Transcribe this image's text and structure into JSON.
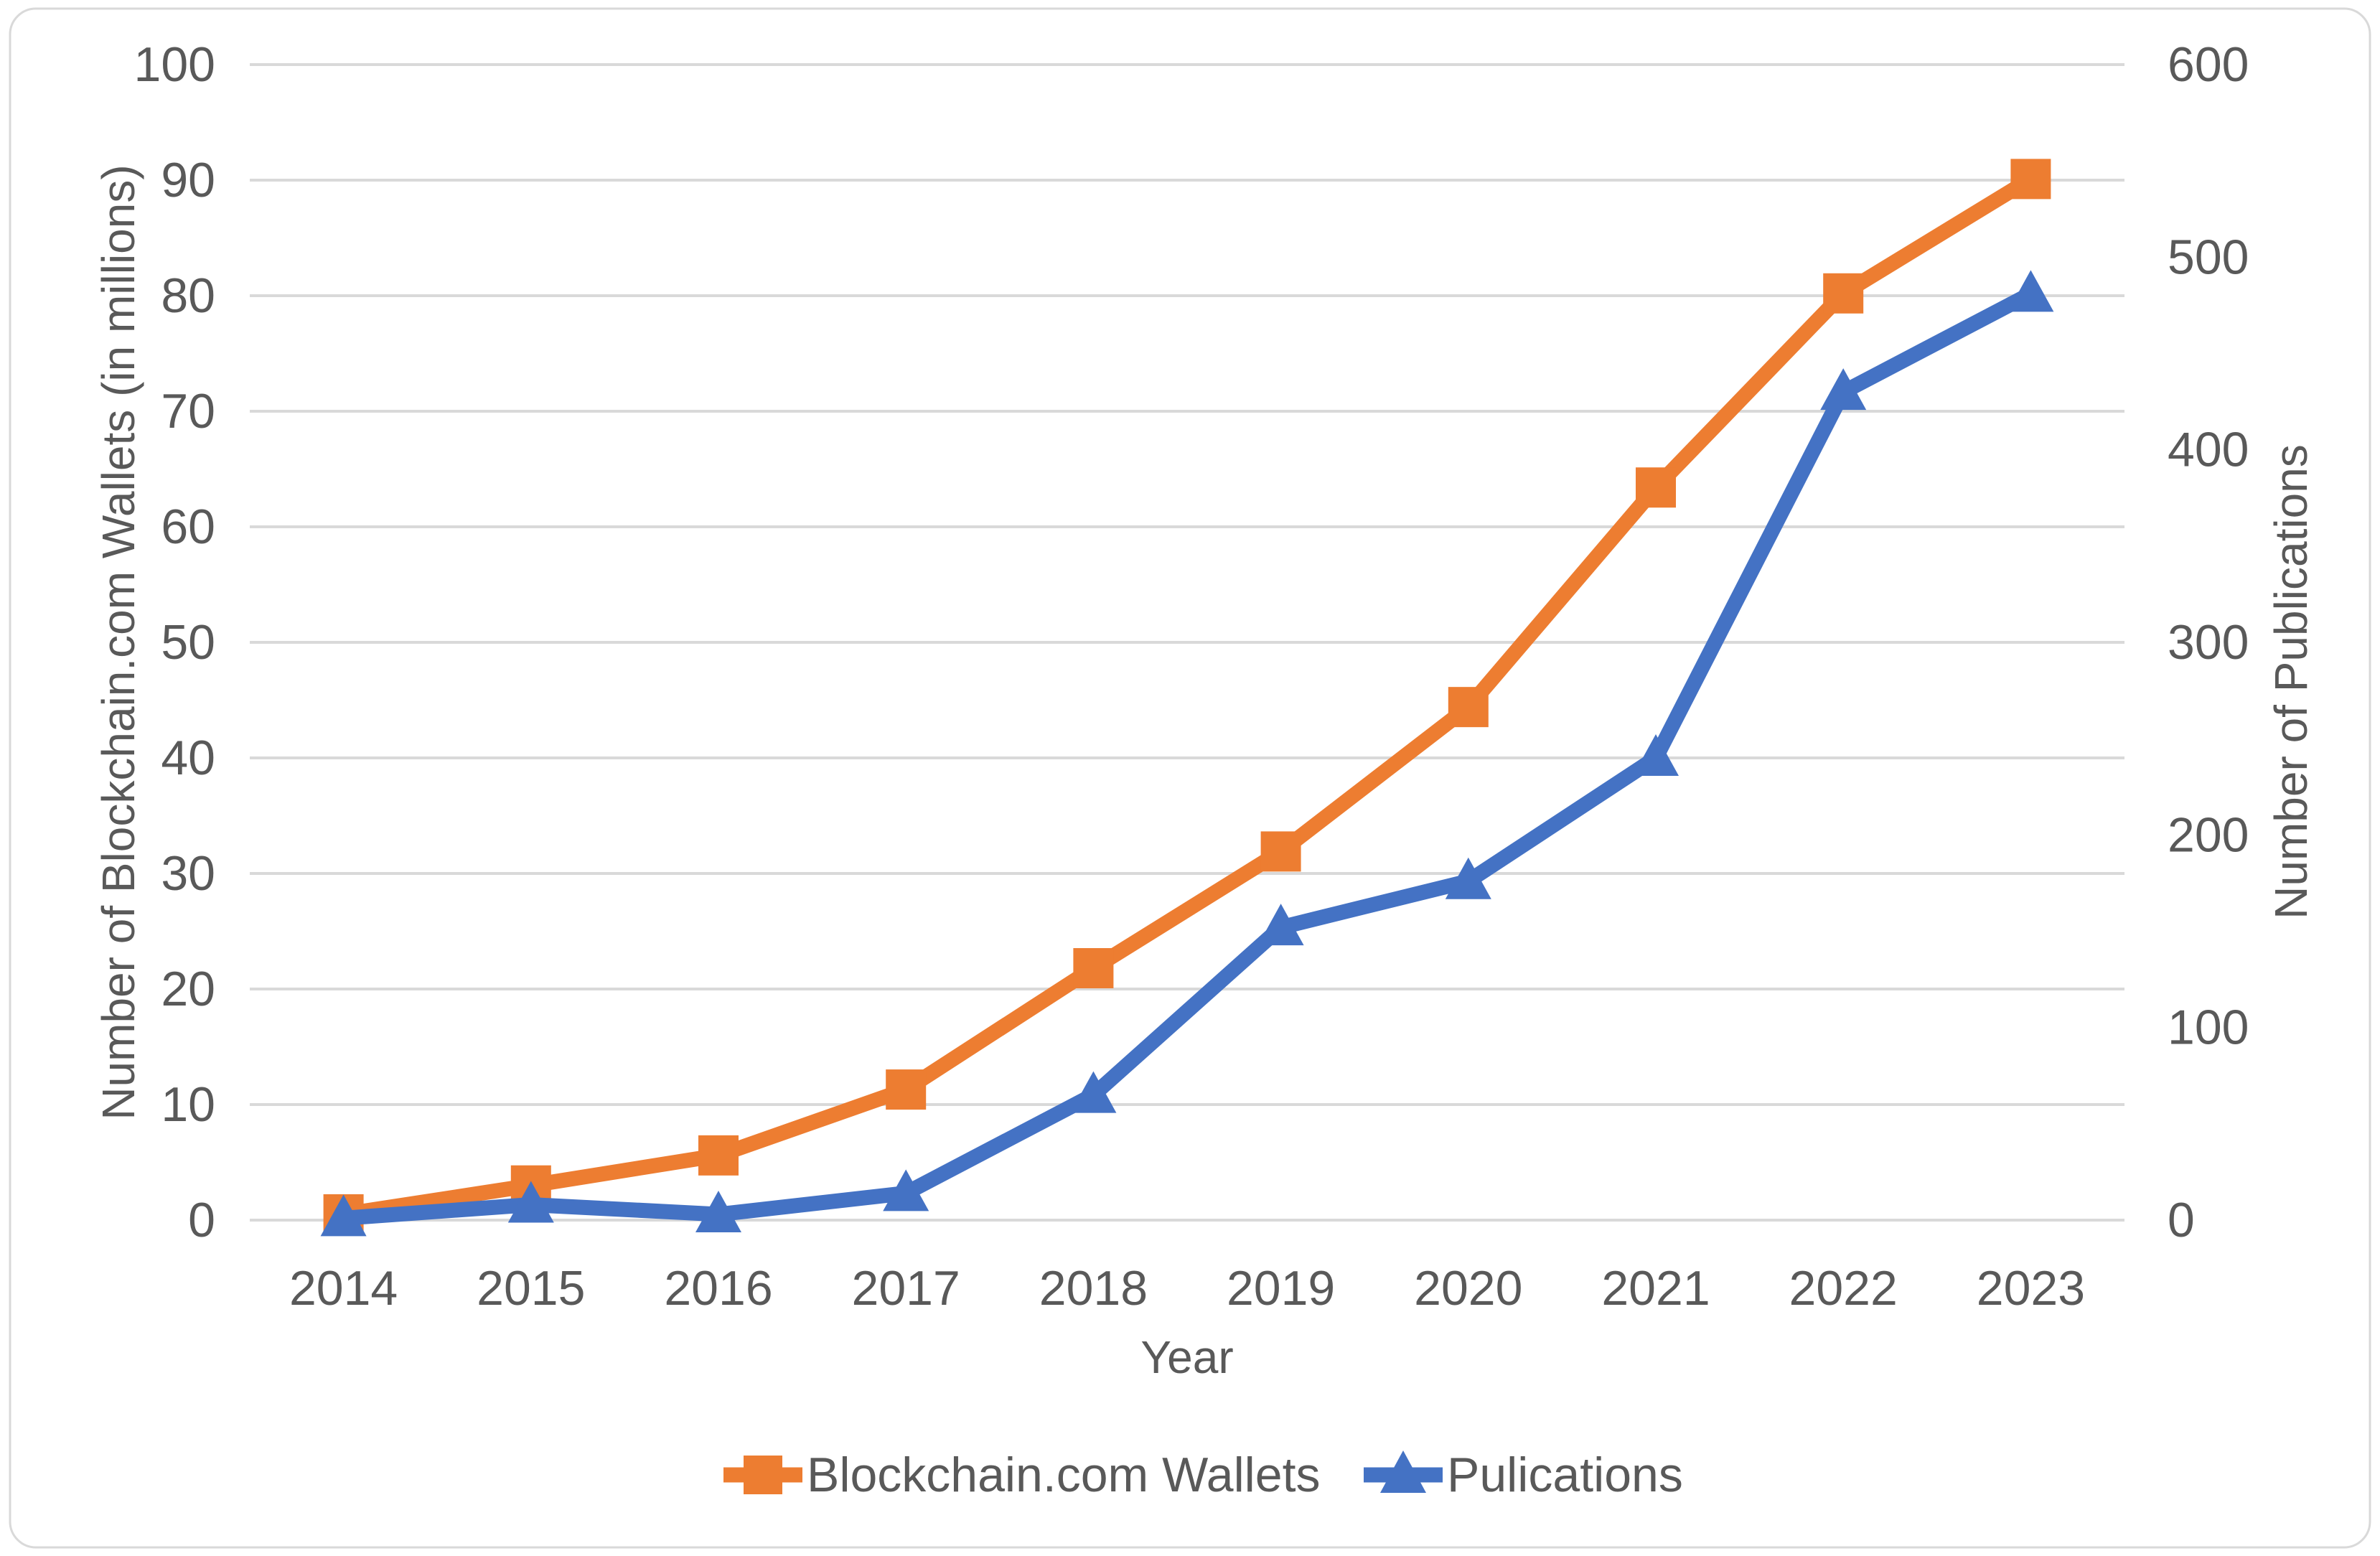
{
  "chart_data": {
    "type": "line",
    "title": "",
    "categories": [
      "2014",
      "2015",
      "2016",
      "2017",
      "2018",
      "2019",
      "2020",
      "2021",
      "2022",
      "2023"
    ],
    "series": [
      {
        "name": "Blockchain.com Wallets",
        "axis": "left",
        "color": "#ED7D31",
        "marker": "square",
        "values": [
          0.5,
          3,
          5.6,
          11.3,
          21.8,
          31.9,
          44.4,
          63.4,
          80.2,
          90.1
        ]
      },
      {
        "name": "Pulications",
        "axis": "right",
        "color": "#4472C4",
        "marker": "triangle",
        "values": [
          1,
          8,
          3,
          14,
          65,
          152,
          176,
          240,
          430,
          481
        ]
      }
    ],
    "x_axis": {
      "label": "Year"
    },
    "left_axis": {
      "label": "Number of Blockchain.com Wallets (in millions)",
      "min": 0,
      "max": 100,
      "step": 10
    },
    "right_axis": {
      "label": "Number of Publications",
      "min": 0,
      "max": 600,
      "step": 100
    },
    "legend": {
      "position": "bottom"
    },
    "grid": {
      "horizontal": true,
      "color": "#D9D9D9"
    },
    "text_color": "#595959",
    "background": "#FFFFFF",
    "border_color": "#D9D9D9"
  }
}
